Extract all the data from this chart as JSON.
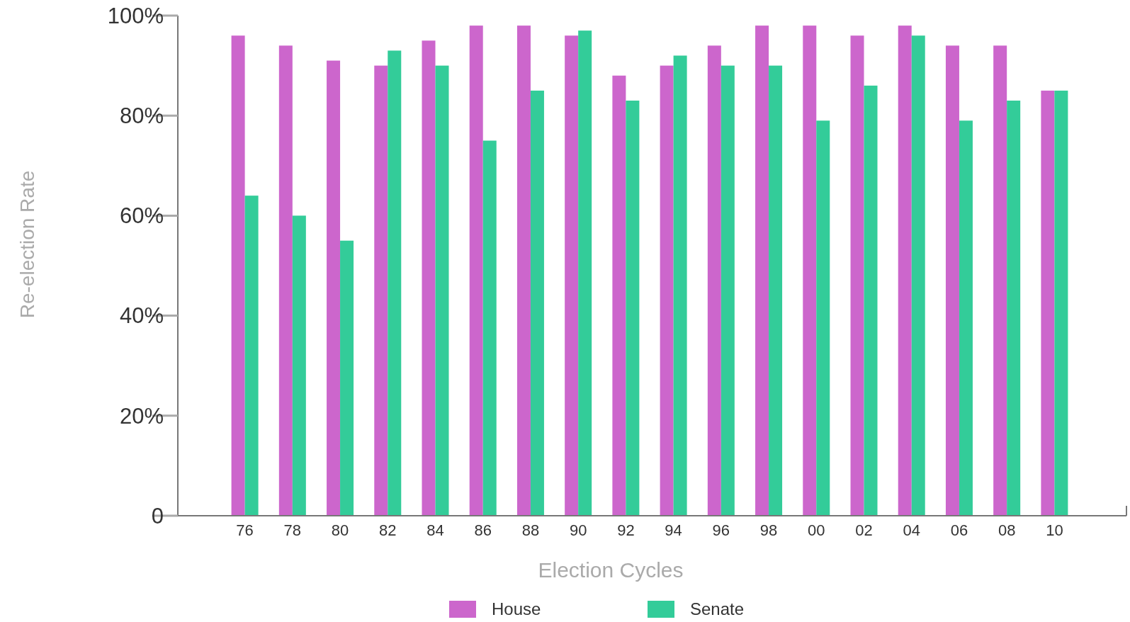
{
  "chart_data": {
    "type": "bar",
    "xlabel": "Election Cycles",
    "ylabel": "Re-election Rate",
    "categories": [
      "76",
      "78",
      "80",
      "82",
      "84",
      "86",
      "88",
      "90",
      "92",
      "94",
      "96",
      "98",
      "00",
      "02",
      "04",
      "06",
      "08",
      "10"
    ],
    "series": [
      {
        "name": "House",
        "color": "#cc66cc",
        "values": [
          96,
          94,
          91,
          90,
          95,
          98,
          98,
          96,
          88,
          90,
          94,
          98,
          98,
          96,
          98,
          94,
          94,
          85
        ]
      },
      {
        "name": "Senate",
        "color": "#33cc99",
        "values": [
          64,
          60,
          55,
          93,
          90,
          75,
          85,
          97,
          83,
          92,
          90,
          90,
          79,
          86,
          96,
          79,
          83,
          85
        ]
      }
    ],
    "ylim": [
      0,
      100
    ],
    "yticks": [
      0,
      {
        "value": 20,
        "label": "20%"
      },
      {
        "value": 40,
        "label": "40%"
      },
      {
        "value": 60,
        "label": "60%"
      },
      {
        "value": 80,
        "label": "80%"
      },
      {
        "value": 100,
        "label": "100%"
      }
    ],
    "grid": false,
    "legend": "bottom"
  }
}
